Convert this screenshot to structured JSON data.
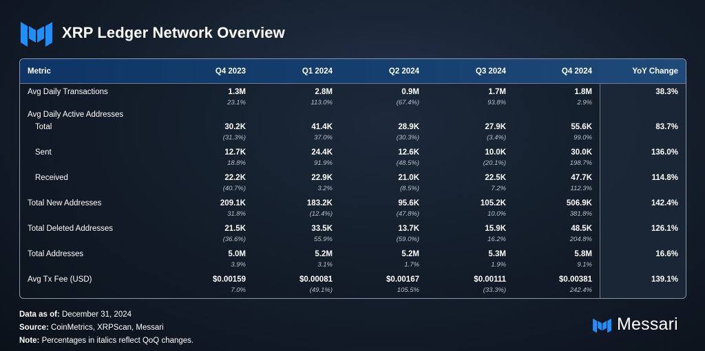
{
  "header": {
    "title": "XRP Ledger Network Overview"
  },
  "chart_data": {
    "type": "table",
    "title": "XRP Ledger Network Overview",
    "columns": [
      "Metric",
      "Q4 2023",
      "Q1 2024",
      "Q2 2024",
      "Q3 2024",
      "Q4 2024",
      "YoY Change"
    ],
    "rows": [
      {
        "metric": "Avg Daily Transactions",
        "indent": false,
        "values": [
          "1.3M",
          "2.8M",
          "0.9M",
          "1.7M",
          "1.8M"
        ],
        "qoq": [
          "23.1%",
          "113.0%",
          "(67.4%)",
          "93.8%",
          "2.9%"
        ],
        "yoy": "38.3%"
      },
      {
        "metric": "Avg Daily Active Addresses",
        "indent": false,
        "group": true,
        "values": [],
        "qoq": [],
        "yoy": ""
      },
      {
        "metric": "Total",
        "indent": true,
        "values": [
          "30.2K",
          "41.4K",
          "28.9K",
          "27.9K",
          "55.6K"
        ],
        "qoq": [
          "(31.3%)",
          "37.0%",
          "(30.3%)",
          "(3.4%)",
          "99.0%"
        ],
        "yoy": "83.7%"
      },
      {
        "metric": "Sent",
        "indent": true,
        "values": [
          "12.7K",
          "24.4K",
          "12.6K",
          "10.0K",
          "30.0K"
        ],
        "qoq": [
          "18.8%",
          "91.9%",
          "(48.5%)",
          "(20.1%)",
          "198.7%"
        ],
        "yoy": "136.0%"
      },
      {
        "metric": "Received",
        "indent": true,
        "values": [
          "22.2K",
          "22.9K",
          "21.0K",
          "22.5K",
          "47.7K"
        ],
        "qoq": [
          "(40.7%)",
          "3.2%",
          "(8.5%)",
          "7.2%",
          "112.3%"
        ],
        "yoy": "114.8%"
      },
      {
        "metric": "Total New Addresses",
        "indent": false,
        "values": [
          "209.1K",
          "183.2K",
          "95.6K",
          "105.2K",
          "506.9K"
        ],
        "qoq": [
          "31.8%",
          "(12.4%)",
          "(47.8%)",
          "10.0%",
          "381.8%"
        ],
        "yoy": "142.4%"
      },
      {
        "metric": "Total Deleted Addresses",
        "indent": false,
        "values": [
          "21.5K",
          "33.5K",
          "13.7K",
          "15.9K",
          "48.5K"
        ],
        "qoq": [
          "(36.6%)",
          "55.9%",
          "(59.0%)",
          "16.2%",
          "204.8%"
        ],
        "yoy": "126.1%"
      },
      {
        "metric": "Total Addresses",
        "indent": false,
        "values": [
          "5.0M",
          "5.2M",
          "5.2M",
          "5.3M",
          "5.8M"
        ],
        "qoq": [
          "3.9%",
          "3.1%",
          "1.7%",
          "1.9%",
          "9.1%"
        ],
        "yoy": "16.6%"
      },
      {
        "metric": "Avg Tx Fee (USD)",
        "indent": false,
        "values": [
          "$0.00159",
          "$0.00081",
          "$0.00167",
          "$0.00111",
          "$0.00381"
        ],
        "qoq": [
          "7.0%",
          "(49.1%)",
          "105.5%",
          "(33.3%)",
          "242.4%"
        ],
        "yoy": "139.1%"
      }
    ]
  },
  "footer": {
    "data_as_of_label": "Data as of:",
    "data_as_of_value": "December 31, 2024",
    "source_label": "Source:",
    "source_value": "CoinMetrics, XRPScan, Messari",
    "note_label": "Note:",
    "note_value": "Percentages in italics reflect QoQ changes."
  },
  "brand": {
    "name": "Messari",
    "logo_icon": "messari-logo-icon",
    "color": "#1e8fff"
  },
  "colors": {
    "header_bg": "#0e3565",
    "accent_blue": "#1e8fff",
    "border": "#8a97a8"
  }
}
